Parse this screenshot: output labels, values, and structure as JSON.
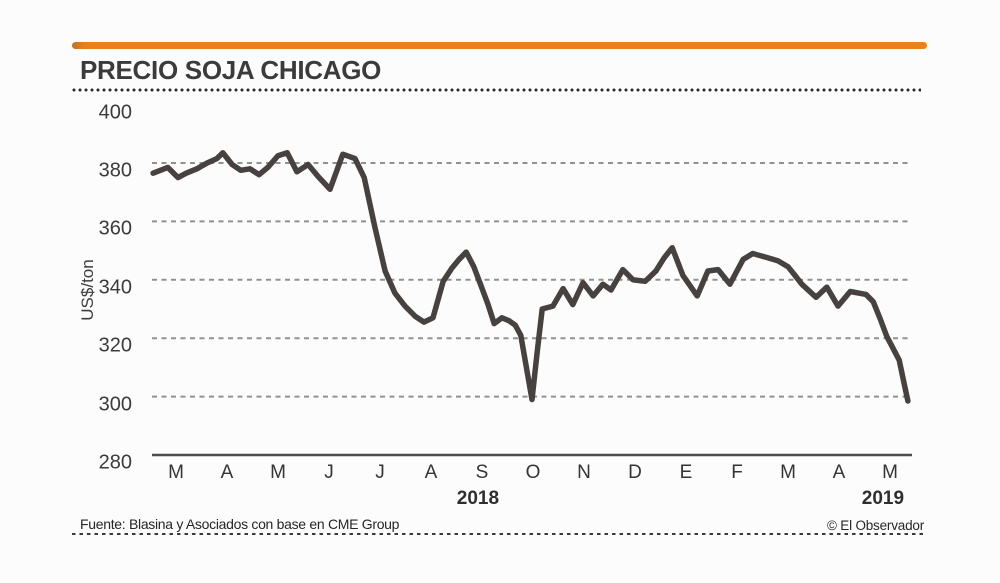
{
  "page": {
    "title": "PRECIO SOJA CHICAGO",
    "source": "Fuente: Blasina y Asociados con base en CME Group",
    "credit": "© El Observador"
  },
  "colors": {
    "accent": "#E5821E",
    "line": "#474140",
    "grid": "#919191",
    "axis": "#4d4d4d",
    "text": "#3b3b3b"
  },
  "chart_data": {
    "type": "line",
    "title": "PRECIO SOJA CHICAGO",
    "xlabel": "",
    "ylabel": "US$/ton",
    "ylim": [
      280,
      400
    ],
    "yticks": [
      280,
      300,
      320,
      340,
      360,
      380,
      400
    ],
    "gridlines_at": [
      300,
      320,
      340,
      360,
      380
    ],
    "grid_style": "dashed horizontal, solid baseline at 280",
    "legend": "none",
    "x_tick_labels": [
      "M",
      "A",
      "M",
      "J",
      "J",
      "A",
      "S",
      "O",
      "N",
      "D",
      "E",
      "F",
      "M",
      "A",
      "M"
    ],
    "x_tick_meaning": "months Mar 2018 through May 2019",
    "year_labels": [
      {
        "label": "2018",
        "x": 5.92
      },
      {
        "label": "2019",
        "x": 13.86
      }
    ],
    "series": [
      {
        "points": [
          [
            -0.45,
            376.5
          ],
          [
            -0.16,
            378.5
          ],
          [
            0.04,
            375
          ],
          [
            0.2,
            376.5
          ],
          [
            0.41,
            378
          ],
          [
            0.61,
            380
          ],
          [
            0.8,
            381.5
          ],
          [
            0.92,
            383.5
          ],
          [
            1.1,
            379.5
          ],
          [
            1.27,
            377.5
          ],
          [
            1.45,
            378
          ],
          [
            1.63,
            376
          ],
          [
            1.8,
            378.5
          ],
          [
            2.0,
            382.5
          ],
          [
            2.18,
            383.5
          ],
          [
            2.37,
            377
          ],
          [
            2.59,
            379.5
          ],
          [
            2.78,
            375.5
          ],
          [
            3.02,
            371
          ],
          [
            3.27,
            383
          ],
          [
            3.51,
            381.5
          ],
          [
            3.69,
            375
          ],
          [
            3.9,
            358
          ],
          [
            4.1,
            343
          ],
          [
            4.29,
            335.5
          ],
          [
            4.49,
            331
          ],
          [
            4.69,
            327.5
          ],
          [
            4.86,
            325.5
          ],
          [
            5.04,
            327
          ],
          [
            5.24,
            339.5
          ],
          [
            5.41,
            344
          ],
          [
            5.55,
            347
          ],
          [
            5.69,
            349.5
          ],
          [
            5.84,
            344.5
          ],
          [
            5.98,
            338
          ],
          [
            6.12,
            331.5
          ],
          [
            6.24,
            325
          ],
          [
            6.39,
            327
          ],
          [
            6.53,
            326
          ],
          [
            6.65,
            324.5
          ],
          [
            6.76,
            321
          ],
          [
            6.88,
            309
          ],
          [
            6.98,
            299
          ],
          [
            7.08,
            315
          ],
          [
            7.18,
            330
          ],
          [
            7.39,
            331
          ],
          [
            7.59,
            337
          ],
          [
            7.78,
            331.5
          ],
          [
            7.98,
            339
          ],
          [
            8.18,
            334.5
          ],
          [
            8.37,
            338.5
          ],
          [
            8.53,
            336.5
          ],
          [
            8.76,
            343.5
          ],
          [
            8.96,
            340
          ],
          [
            9.2,
            339.5
          ],
          [
            9.41,
            343
          ],
          [
            9.57,
            347.5
          ],
          [
            9.73,
            351
          ],
          [
            9.94,
            341.5
          ],
          [
            10.22,
            334.5
          ],
          [
            10.43,
            343
          ],
          [
            10.63,
            343.5
          ],
          [
            10.86,
            338.5
          ],
          [
            11.12,
            347
          ],
          [
            11.31,
            349
          ],
          [
            11.61,
            347.5
          ],
          [
            11.8,
            346.5
          ],
          [
            12.0,
            344.5
          ],
          [
            12.16,
            341
          ],
          [
            12.27,
            338.5
          ],
          [
            12.55,
            334
          ],
          [
            12.76,
            337.5
          ],
          [
            12.98,
            331
          ],
          [
            13.22,
            336
          ],
          [
            13.37,
            335.5
          ],
          [
            13.53,
            335
          ],
          [
            13.67,
            332.5
          ],
          [
            13.8,
            327
          ],
          [
            13.94,
            320.5
          ],
          [
            14.06,
            316.5
          ],
          [
            14.18,
            312.5
          ],
          [
            14.27,
            305
          ],
          [
            14.35,
            298.5
          ]
        ]
      }
    ]
  }
}
